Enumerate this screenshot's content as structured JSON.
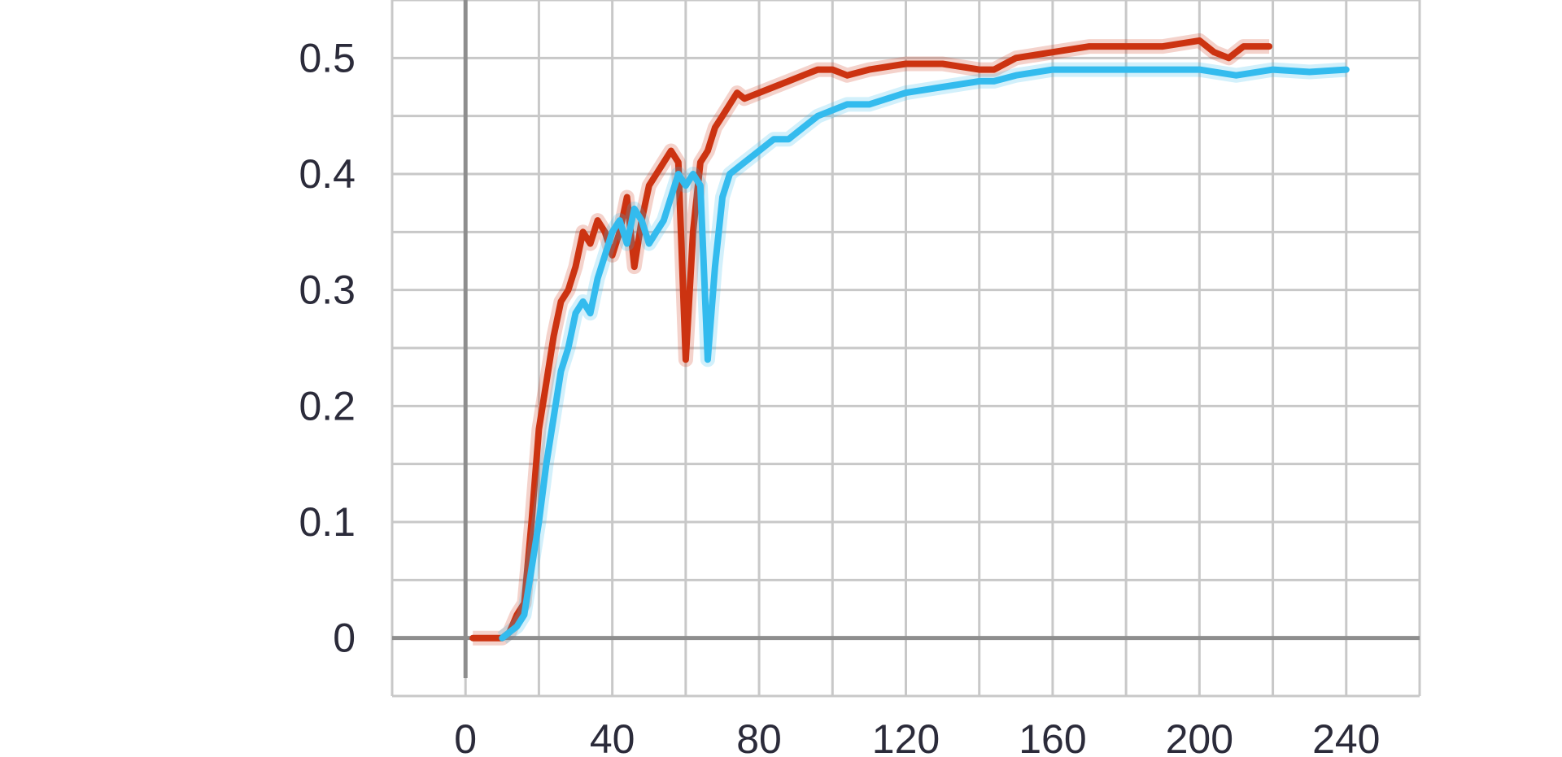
{
  "chart_data": {
    "type": "line",
    "title": "",
    "xlabel": "",
    "ylabel": "",
    "xlim": [
      -20,
      260
    ],
    "ylim": [
      -0.05,
      0.55
    ],
    "x_ticks": [
      0,
      40,
      80,
      120,
      160,
      200,
      240
    ],
    "x_tick_labels": [
      "0",
      "40",
      "80",
      "120",
      "160",
      "200",
      "240"
    ],
    "y_ticks": [
      0,
      0.1,
      0.2,
      0.3,
      0.4,
      0.5
    ],
    "y_tick_labels": [
      "0",
      "0.1",
      "0.2",
      "0.3",
      "0.4",
      "0.5"
    ],
    "grid": true,
    "legend": "none",
    "colors": {
      "series_red": "#cc3311",
      "series_blue": "#33bbee",
      "grid": "#c8c8c8",
      "axis": "#8e8e8e"
    },
    "series": [
      {
        "color": "#cc3311",
        "x": [
          2,
          6,
          10,
          12,
          14,
          16,
          18,
          20,
          22,
          24,
          26,
          28,
          30,
          32,
          34,
          36,
          38,
          40,
          42,
          44,
          46,
          48,
          50,
          52,
          54,
          56,
          58,
          60,
          62,
          64,
          66,
          68,
          70,
          72,
          74,
          76,
          80,
          84,
          88,
          92,
          96,
          100,
          104,
          110,
          120,
          130,
          140,
          144,
          150,
          160,
          170,
          180,
          190,
          200,
          204,
          208,
          212,
          216,
          219
        ],
        "y": [
          0,
          0,
          0,
          0.005,
          0.02,
          0.03,
          0.1,
          0.18,
          0.22,
          0.26,
          0.29,
          0.3,
          0.32,
          0.35,
          0.34,
          0.36,
          0.35,
          0.33,
          0.35,
          0.38,
          0.32,
          0.36,
          0.39,
          0.4,
          0.41,
          0.42,
          0.41,
          0.24,
          0.35,
          0.41,
          0.42,
          0.44,
          0.45,
          0.46,
          0.47,
          0.465,
          0.47,
          0.475,
          0.48,
          0.485,
          0.49,
          0.49,
          0.485,
          0.49,
          0.495,
          0.495,
          0.49,
          0.49,
          0.5,
          0.505,
          0.51,
          0.51,
          0.51,
          0.515,
          0.505,
          0.5,
          0.51,
          0.51,
          0.51
        ]
      },
      {
        "color": "#33bbee",
        "x": [
          10,
          12,
          14,
          16,
          18,
          20,
          22,
          24,
          26,
          28,
          30,
          32,
          34,
          36,
          38,
          40,
          42,
          44,
          46,
          48,
          50,
          52,
          54,
          56,
          58,
          60,
          62,
          64,
          66,
          68,
          70,
          72,
          76,
          80,
          84,
          88,
          92,
          96,
          100,
          104,
          110,
          120,
          130,
          140,
          144,
          150,
          160,
          170,
          180,
          190,
          200,
          210,
          220,
          230,
          240
        ],
        "y": [
          0,
          0.005,
          0.01,
          0.02,
          0.06,
          0.1,
          0.15,
          0.19,
          0.23,
          0.25,
          0.28,
          0.29,
          0.28,
          0.31,
          0.33,
          0.35,
          0.36,
          0.34,
          0.37,
          0.36,
          0.34,
          0.35,
          0.36,
          0.38,
          0.4,
          0.39,
          0.4,
          0.39,
          0.24,
          0.32,
          0.38,
          0.4,
          0.41,
          0.42,
          0.43,
          0.43,
          0.44,
          0.45,
          0.455,
          0.46,
          0.46,
          0.47,
          0.475,
          0.48,
          0.48,
          0.485,
          0.49,
          0.49,
          0.49,
          0.49,
          0.49,
          0.485,
          0.49,
          0.488,
          0.49
        ]
      }
    ]
  }
}
